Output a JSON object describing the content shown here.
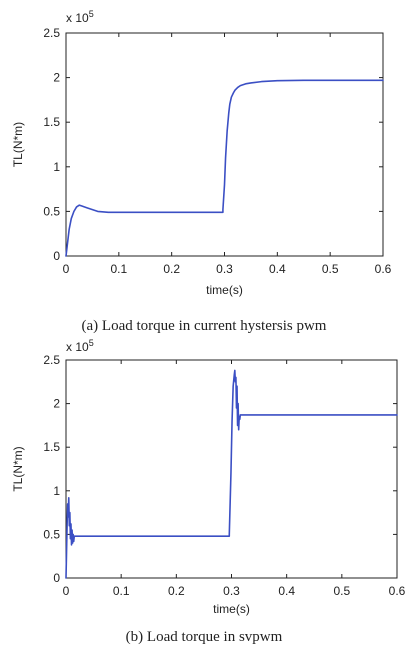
{
  "chart_data": [
    {
      "type": "line",
      "caption": "(a) Load torque in current hystersis pwm",
      "xlabel": "time(s)",
      "ylabel": "TL(N*m)",
      "y_multiplier_label": "x 10",
      "y_multiplier_exponent": "5",
      "xlim": [
        0,
        0.6
      ],
      "ylim": [
        0,
        2.5
      ],
      "x_ticks": [
        0,
        0.1,
        0.2,
        0.3,
        0.4,
        0.5,
        0.6
      ],
      "x_tick_labels": [
        "0",
        "0.1",
        "0.2",
        "0.3",
        "0.4",
        "0.5",
        "0.6"
      ],
      "y_ticks": [
        0,
        0.5,
        1,
        1.5,
        2,
        2.5
      ],
      "y_tick_labels": [
        "0",
        "0.5",
        "1",
        "1.5",
        "2",
        "2.5"
      ],
      "grid": false,
      "line_color": "#3b4fc4",
      "series": [
        {
          "x": [
            0,
            0.003,
            0.006,
            0.01,
            0.015,
            0.02,
            0.025,
            0.03,
            0.04,
            0.05,
            0.06,
            0.08,
            0.1,
            0.15,
            0.2,
            0.25,
            0.29,
            0.297,
            0.297,
            0.3,
            0.302,
            0.305,
            0.308,
            0.31,
            0.313,
            0.317,
            0.32,
            0.325,
            0.33,
            0.34,
            0.35,
            0.37,
            0.4,
            0.45,
            0.5,
            0.55,
            0.6
          ],
          "y": [
            0,
            0.15,
            0.3,
            0.42,
            0.5,
            0.55,
            0.57,
            0.56,
            0.54,
            0.52,
            0.5,
            0.49,
            0.49,
            0.49,
            0.49,
            0.49,
            0.49,
            0.49,
            0.52,
            0.8,
            1.1,
            1.4,
            1.6,
            1.7,
            1.78,
            1.83,
            1.86,
            1.89,
            1.91,
            1.93,
            1.94,
            1.955,
            1.965,
            1.97,
            1.97,
            1.97,
            1.97
          ]
        }
      ]
    },
    {
      "type": "line",
      "caption": "(b) Load torque in svpwm",
      "xlabel": "time(s)",
      "ylabel": "TL(N*m)",
      "y_multiplier_label": "x 10",
      "y_multiplier_exponent": "5",
      "xlim": [
        0,
        0.6
      ],
      "ylim": [
        0,
        2.5
      ],
      "x_ticks": [
        0,
        0.1,
        0.2,
        0.3,
        0.4,
        0.5,
        0.6
      ],
      "x_tick_labels": [
        "0",
        "0.1",
        "0.2",
        "0.3",
        "0.4",
        "0.5",
        "0.6"
      ],
      "y_ticks": [
        0,
        0.5,
        1,
        1.5,
        2,
        2.5
      ],
      "y_tick_labels": [
        "0",
        "0.5",
        "1",
        "1.5",
        "2",
        "2.5"
      ],
      "grid": false,
      "line_color": "#3b4fc4",
      "series": [
        {
          "x": [
            0,
            0.001,
            0.002,
            0.003,
            0.004,
            0.005,
            0.006,
            0.007,
            0.008,
            0.009,
            0.01,
            0.011,
            0.012,
            0.013,
            0.014,
            0.015,
            0.02,
            0.05,
            0.1,
            0.2,
            0.29,
            0.296,
            0.296,
            0.299,
            0.301,
            0.303,
            0.305,
            0.306,
            0.307,
            0.308,
            0.309,
            0.31,
            0.311,
            0.312,
            0.313,
            0.314,
            0.315,
            0.316,
            0.318,
            0.32,
            0.35,
            0.4,
            0.5,
            0.6
          ],
          "y": [
            0,
            0.3,
            0.6,
            0.85,
            0.7,
            0.92,
            0.6,
            0.75,
            0.45,
            0.62,
            0.38,
            0.55,
            0.4,
            0.5,
            0.42,
            0.48,
            0.48,
            0.48,
            0.48,
            0.48,
            0.48,
            0.48,
            0.5,
            1.2,
            1.8,
            2.2,
            2.33,
            2.38,
            2.25,
            2.3,
            1.95,
            2.2,
            1.75,
            2.0,
            1.7,
            1.85,
            1.82,
            1.87,
            1.87,
            1.87,
            1.87,
            1.87,
            1.87,
            1.87
          ]
        }
      ]
    }
  ]
}
